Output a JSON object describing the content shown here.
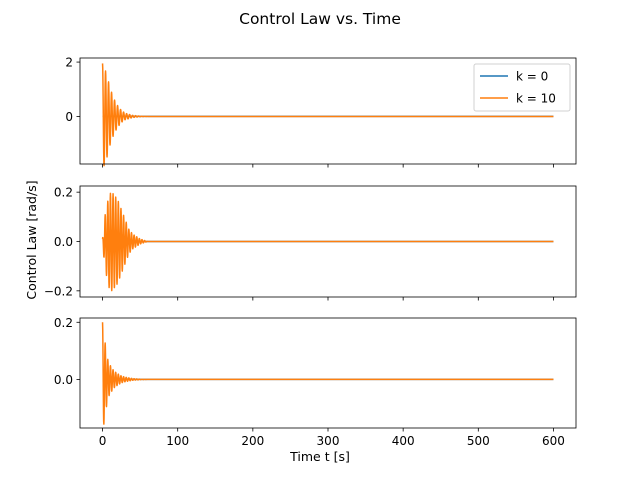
{
  "figure": {
    "title": "Control Law vs. Time",
    "xlabel": "Time t [s]",
    "ylabel": "Control Law [rad/s]"
  },
  "chart_data": {
    "type": "line",
    "title": "Control Law vs. Time",
    "xlabel": "Time t [s]",
    "ylabel": "Control Law [rad/s]",
    "xlim": [
      -30,
      630
    ],
    "xticks": [
      0,
      100,
      200,
      300,
      400,
      500,
      600
    ],
    "series_colors": {
      "k = 0": "#1f77b4",
      "k = 10": "#ff7f0e"
    },
    "legend": {
      "location": "top-right",
      "entries": [
        "k = 0",
        "k = 10"
      ],
      "shown_on_panel": 0
    },
    "grid": false,
    "panels": [
      {
        "ylim": [
          -1.75,
          2.15
        ],
        "yticks": [
          -2,
          0,
          2
        ],
        "ytick_labels": [
          "",
          "0",
          "2"
        ],
        "signal": {
          "peak_x": [
            0,
            5,
            10,
            15,
            20,
            25,
            30,
            40,
            50,
            60,
            600
          ],
          "peak_abs": [
            1.95,
            1.6,
            1.05,
            0.65,
            0.4,
            0.22,
            0.12,
            0.04,
            0.01,
            0.0,
            0.0
          ],
          "period": 4.0
        },
        "series": [
          {
            "name": "k = 0",
            "x": [
              0,
              600
            ],
            "values": [
              0,
              0
            ]
          },
          {
            "name": "k = 10",
            "x": [
              0,
              1,
              2,
              3,
              5,
              7,
              9,
              11,
              13,
              15,
              20,
              30,
              40,
              50,
              60,
              600
            ],
            "values": [
              0,
              1.95,
              0.2,
              -1.6,
              1.15,
              -0.9,
              0.75,
              -0.55,
              0.45,
              -0.35,
              0.3,
              0.1,
              0.04,
              0.01,
              0,
              0
            ]
          }
        ]
      },
      {
        "ylim": [
          -0.225,
          0.225
        ],
        "yticks": [
          -0.2,
          0.0,
          0.2
        ],
        "ytick_labels": [
          "−0.2",
          "0.0",
          "0.2"
        ],
        "signal": {
          "peak_x": [
            0,
            3,
            6,
            9,
            12,
            15,
            20,
            25,
            30,
            35,
            40,
            50,
            60,
            70,
            600
          ],
          "peak_abs": [
            0.01,
            0.1,
            0.15,
            0.19,
            0.2,
            0.19,
            0.17,
            0.13,
            0.09,
            0.05,
            0.03,
            0.01,
            0.0,
            0.0,
            0.0
          ],
          "period": 3.5
        },
        "series": [
          {
            "name": "k = 0",
            "x": [
              0,
              600
            ],
            "values": [
              0,
              0
            ]
          },
          {
            "name": "k = 10",
            "x": [
              0,
              5,
              9,
              12,
              15,
              20,
              25,
              30,
              40,
              50,
              60,
              600
            ],
            "values": [
              0,
              0.12,
              -0.18,
              0.2,
              -0.2,
              0.17,
              -0.13,
              0.09,
              0.03,
              0.01,
              0,
              0
            ]
          }
        ]
      },
      {
        "ylim": [
          -0.17,
          0.215
        ],
        "yticks": [
          0.0,
          0.2
        ],
        "ytick_labels": [
          "0.0",
          "0.2"
        ],
        "signal": {
          "peak_x": [
            0,
            2,
            4,
            6,
            8,
            10,
            15,
            20,
            25,
            30,
            40,
            50,
            60,
            600
          ],
          "peak_abs": [
            0.2,
            0.15,
            0.12,
            0.08,
            0.06,
            0.05,
            0.03,
            0.02,
            0.012,
            0.008,
            0.003,
            0.001,
            0.0,
            0.0
          ],
          "period": 3.5
        },
        "series": [
          {
            "name": "k = 0",
            "x": [
              0,
              600
            ],
            "values": [
              0,
              0
            ]
          },
          {
            "name": "k = 10",
            "x": [
              0,
              1,
              3,
              5,
              7,
              9,
              12,
              15,
              20,
              30,
              40,
              50,
              60,
              600
            ],
            "values": [
              0.08,
              0.2,
              -0.15,
              0.12,
              -0.08,
              0.06,
              -0.05,
              0.03,
              0.02,
              0.008,
              0.003,
              0.001,
              0,
              0
            ]
          }
        ]
      }
    ]
  }
}
